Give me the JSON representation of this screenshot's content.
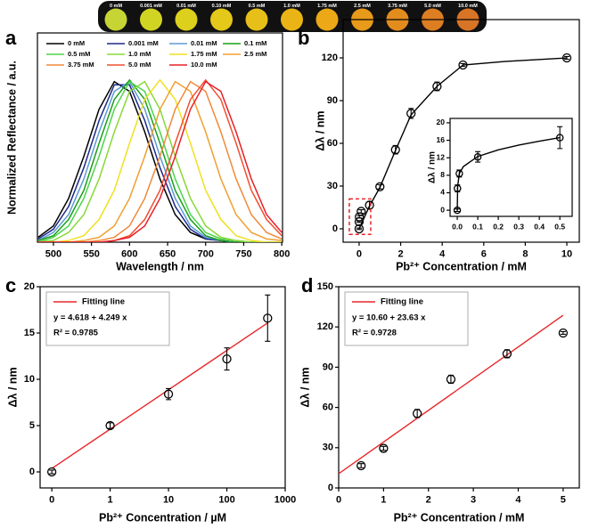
{
  "top_strip": {
    "labels": [
      "0 mM",
      "0.001 mM",
      "0.01 mM",
      "0.10 mM",
      "0.5 mM",
      "1.0 mM",
      "1.75 mM",
      "2.5 mM",
      "3.75 mM",
      "5.0 mM",
      "10.0 mM"
    ],
    "colors": [
      "#c6d534",
      "#d2d424",
      "#ddd01c",
      "#e4c81a",
      "#e7bf18",
      "#eab416",
      "#eca816",
      "#e89a1a",
      "#e38c1e",
      "#dd7e22",
      "#d87426"
    ]
  },
  "chart_data": [
    {
      "panel": "a",
      "type": "line",
      "xlabel": "Wavelength / nm",
      "ylabel": "Normalized Reflectance / a.u.",
      "x": [
        480,
        500,
        520,
        540,
        560,
        580,
        600,
        620,
        640,
        660,
        680,
        700,
        720,
        740,
        760,
        780,
        800
      ],
      "xlim": [
        479,
        801
      ],
      "xticks": [
        500,
        550,
        600,
        650,
        700,
        750,
        800
      ],
      "ylim": [
        0,
        1.29
      ],
      "legend": "upper left",
      "series": [
        {
          "name": "0 mM",
          "color": "#000000",
          "values": [
            0.03,
            0.1,
            0.27,
            0.53,
            0.82,
            0.99,
            0.93,
            0.68,
            0.39,
            0.17,
            0.06,
            0.02,
            0.01,
            0,
            0,
            0,
            0
          ]
        },
        {
          "name": "0.001 mM",
          "color": "#1f2a8a",
          "values": [
            0.02,
            0.08,
            0.22,
            0.46,
            0.75,
            0.97,
            0.97,
            0.75,
            0.46,
            0.22,
            0.08,
            0.02,
            0.01,
            0,
            0,
            0,
            0
          ]
        },
        {
          "name": "0.01 mM",
          "color": "#5b9bd5",
          "values": [
            0.01,
            0.06,
            0.17,
            0.39,
            0.68,
            0.93,
            0.99,
            0.82,
            0.53,
            0.27,
            0.1,
            0.03,
            0.01,
            0,
            0,
            0,
            0
          ]
        },
        {
          "name": "0.1 mM",
          "color": "#19a019",
          "values": [
            0.01,
            0.04,
            0.14,
            0.32,
            0.61,
            0.88,
            1,
            0.88,
            0.61,
            0.32,
            0.14,
            0.04,
            0.01,
            0,
            0,
            0,
            0
          ]
        },
        {
          "name": "0.5 mM",
          "color": "#4cd44c",
          "values": [
            0,
            0.03,
            0.1,
            0.27,
            0.53,
            0.82,
            0.99,
            0.93,
            0.68,
            0.39,
            0.17,
            0.06,
            0.02,
            0.01,
            0,
            0,
            0
          ]
        },
        {
          "name": "1.0 mM",
          "color": "#88d836",
          "values": [
            0,
            0.01,
            0.06,
            0.17,
            0.39,
            0.68,
            0.93,
            0.99,
            0.82,
            0.53,
            0.27,
            0.1,
            0.03,
            0.01,
            0,
            0,
            0
          ]
        },
        {
          "name": "1.75 mM",
          "color": "#f0e020",
          "values": [
            0,
            0,
            0.01,
            0.04,
            0.14,
            0.32,
            0.61,
            0.88,
            1,
            0.88,
            0.61,
            0.32,
            0.14,
            0.04,
            0.01,
            0,
            0
          ]
        },
        {
          "name": "2.5 mM",
          "color": "#f0a030",
          "values": [
            0,
            0,
            0,
            0.01,
            0.03,
            0.1,
            0.27,
            0.53,
            0.82,
            0.99,
            0.93,
            0.68,
            0.39,
            0.17,
            0.06,
            0.02,
            0.01
          ]
        },
        {
          "name": "3.75 mM",
          "color": "#f08a3a",
          "values": [
            0,
            0,
            0,
            0,
            0.01,
            0.03,
            0.1,
            0.27,
            0.53,
            0.82,
            0.99,
            0.93,
            0.68,
            0.39,
            0.17,
            0.06,
            0.02
          ]
        },
        {
          "name": "5.0 mM",
          "color": "#f05030",
          "values": [
            0,
            0,
            0,
            0,
            0,
            0.01,
            0.04,
            0.14,
            0.32,
            0.61,
            0.88,
            1,
            0.88,
            0.61,
            0.32,
            0.14,
            0.04
          ]
        },
        {
          "name": "10.0 mM",
          "color": "#e8202a",
          "values": [
            0,
            0,
            0,
            0,
            0,
            0.01,
            0.03,
            0.1,
            0.27,
            0.53,
            0.82,
            0.99,
            0.93,
            0.68,
            0.39,
            0.17,
            0.06
          ]
        }
      ]
    },
    {
      "panel": "b",
      "type": "scatter",
      "xlabel": "Pb²⁺ Concentration / mM",
      "ylabel": "Δλ / nm",
      "x": [
        0,
        0.001,
        0.01,
        0.1,
        0.5,
        1.0,
        1.75,
        2.5,
        3.75,
        5.0,
        10.0
      ],
      "values": [
        0,
        5,
        8.4,
        12.2,
        16.6,
        29.5,
        55.5,
        81,
        100,
        115,
        120
      ],
      "errors": [
        0.5,
        0.5,
        0.8,
        1.2,
        2.5,
        1.5,
        3,
        3.5,
        3,
        1,
        1
      ],
      "fit": {
        "color": "#000000",
        "x": [
          0,
          0.25,
          0.5,
          1,
          1.75,
          2.5,
          3.75,
          5,
          7,
          10
        ],
        "values": [
          0,
          8,
          16,
          29,
          55,
          80,
          100,
          115,
          117.5,
          120
        ]
      },
      "xlim": [
        -0.77,
        10.6
      ],
      "xticks": [
        0,
        2,
        4,
        6,
        8,
        10
      ],
      "ylim": [
        -9.4,
        146.9
      ],
      "yticks": [
        0,
        30,
        60,
        90,
        120
      ],
      "inset": {
        "type": "scatter",
        "ylabel": "Δλ / nm",
        "x": [
          0,
          0.001,
          0.01,
          0.1,
          0.5
        ],
        "values": [
          0,
          5,
          8.4,
          12.2,
          16.6
        ],
        "errors": [
          0.3,
          0.8,
          0.8,
          1.2,
          2.5
        ],
        "fit": {
          "color": "#000000",
          "x": [
            0,
            0.002,
            0.01,
            0.03,
            0.1,
            0.2,
            0.3,
            0.4,
            0.5
          ],
          "values": [
            0,
            5.5,
            8.4,
            10,
            12.3,
            13.8,
            14.9,
            15.8,
            16.6
          ]
        },
        "xlim": [
          -0.035,
          0.56
        ],
        "xticks": [
          {
            "value": 0,
            "label": "0.0"
          },
          0.1,
          0.2,
          0.3,
          0.4,
          0.5
        ],
        "ylim": [
          -1.4,
          21
        ],
        "yticks": [
          0,
          4,
          8,
          12,
          16,
          20
        ]
      }
    },
    {
      "panel": "c",
      "type": "scatter",
      "xscale": "log",
      "xlabel": "Pb²⁺ Concentration / µM",
      "ylabel": "Δλ / nm",
      "x": [
        0.1,
        1,
        10,
        100,
        500
      ],
      "values": [
        0,
        5,
        8.4,
        12.2,
        16.6
      ],
      "errors": [
        0.2,
        0.3,
        0.6,
        1.2,
        2.5
      ],
      "fit": {
        "name": "Fitting line",
        "color": "#e8262a",
        "x": [
          0.1,
          500
        ],
        "values": [
          0.37,
          16.09
        ]
      },
      "equation": "y = 4.618 + 4.249 x",
      "r_squared": "R² = 0.9785",
      "xlim": [
        0.063,
        1000
      ],
      "xticks": [
        {
          "value": 0.1,
          "label": "0"
        },
        1,
        10,
        100,
        1000
      ],
      "ylim": [
        -1.73,
        20
      ],
      "yticks": [
        0,
        5,
        10,
        15,
        20
      ]
    },
    {
      "panel": "d",
      "type": "scatter",
      "xlabel": "Pb²⁺ Concentration / mM",
      "ylabel": "Δλ / nm",
      "x": [
        0.5,
        1,
        1.75,
        2.5,
        3.75,
        5
      ],
      "values": [
        16.6,
        29.5,
        55.5,
        81,
        100,
        115.5
      ],
      "errors": [
        1.5,
        1.5,
        3,
        3,
        3,
        1
      ],
      "fit": {
        "name": "Fitting line",
        "color": "#e8262a",
        "x": [
          0,
          5
        ],
        "values": [
          10.6,
          128.75
        ]
      },
      "equation": "y = 10.60 + 23.63 x",
      "r_squared": "R² = 0.9728",
      "xlim": [
        0,
        5.36
      ],
      "xticks": [
        0,
        1,
        2,
        3,
        4,
        5
      ],
      "ylim": [
        0,
        150
      ],
      "yticks": [
        0,
        30,
        60,
        90,
        120,
        150
      ]
    }
  ]
}
